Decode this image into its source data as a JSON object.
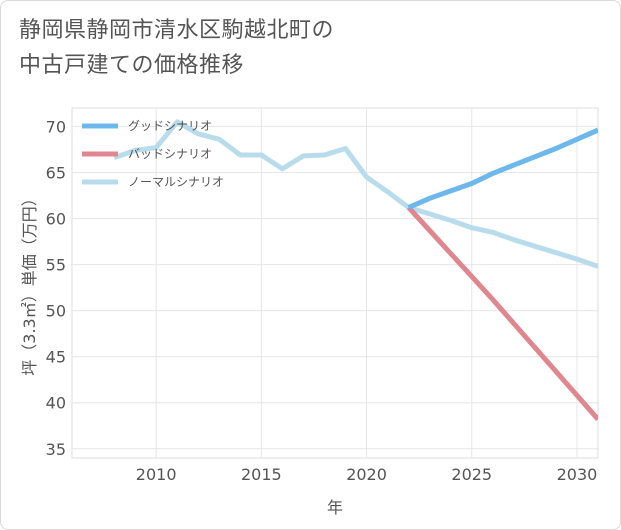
{
  "title": {
    "line1": "静岡県静岡市清水区駒越北町の",
    "line2": "中古戸建ての価格推移"
  },
  "chart_data": {
    "type": "line",
    "title": "静岡県静岡市清水区駒越北町の中古戸建ての価格推移",
    "xlabel": "年",
    "ylabel": "坪（3.3㎡）単価（万円）",
    "xlim": [
      2006,
      2031
    ],
    "ylim": [
      34,
      72
    ],
    "xticks": [
      2010,
      2015,
      2020,
      2025,
      2030
    ],
    "yticks": [
      35,
      40,
      45,
      50,
      55,
      60,
      65,
      70
    ],
    "grid": true,
    "legend_position": "top-left",
    "series": [
      {
        "name": "グッドシナリオ",
        "color": "#6cb8ec",
        "x": [
          2022,
          2023,
          2024,
          2025,
          2026,
          2027,
          2028,
          2029,
          2030,
          2031
        ],
        "y": [
          61.2,
          62.2,
          63.0,
          63.8,
          64.9,
          65.8,
          66.7,
          67.6,
          68.6,
          69.6
        ]
      },
      {
        "name": "バッドシナリオ",
        "color": "#e0868f",
        "x": [
          2022,
          2023,
          2024,
          2025,
          2026,
          2027,
          2028,
          2029,
          2030,
          2031
        ],
        "y": [
          61.2,
          58.7,
          56.2,
          53.7,
          51.2,
          48.6,
          46.0,
          43.4,
          40.8,
          38.2
        ]
      },
      {
        "name": "ノーマルシナリオ",
        "color": "#b9dcec",
        "x": [
          2008,
          2009,
          2010,
          2011,
          2012,
          2013,
          2014,
          2015,
          2016,
          2017,
          2018,
          2019,
          2020,
          2021,
          2022,
          2023,
          2024,
          2025,
          2026,
          2027,
          2028,
          2029,
          2030,
          2031
        ],
        "y": [
          66.6,
          67.4,
          67.7,
          70.5,
          69.2,
          68.6,
          66.9,
          66.9,
          65.4,
          66.8,
          66.9,
          67.6,
          64.5,
          62.9,
          61.2,
          60.5,
          59.8,
          59.0,
          58.5,
          57.7,
          57.0,
          56.3,
          55.6,
          54.8
        ]
      }
    ]
  }
}
